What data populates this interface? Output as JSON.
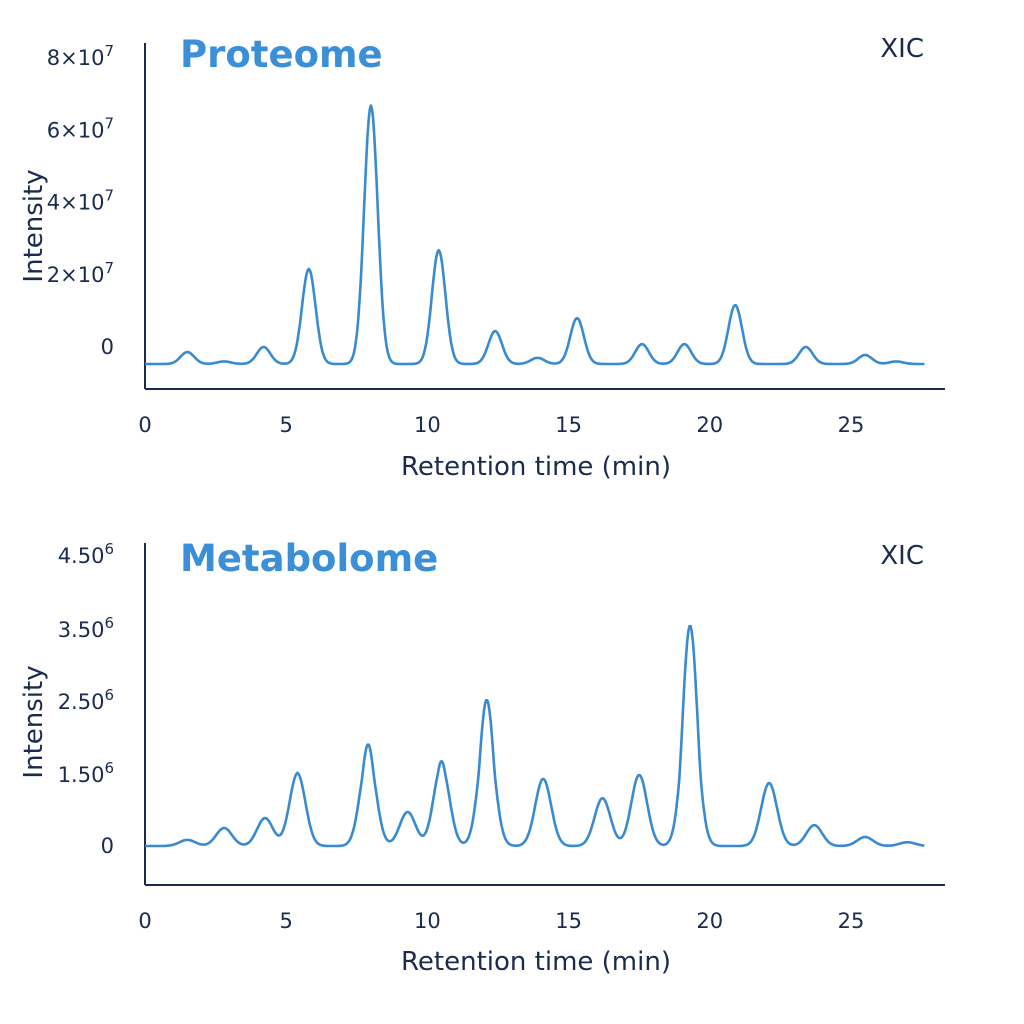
{
  "chart_data": [
    {
      "type": "line",
      "title": "Proteome",
      "tag": "XIC",
      "xlabel": "Retention time (min)",
      "ylabel": "Intensity",
      "xlim": [
        0,
        28.3
      ],
      "ylim": [
        -11600000,
        84000000
      ],
      "xticks": [
        "0",
        "5",
        "10",
        "15",
        "20",
        "25"
      ],
      "xtick_values": [
        0,
        5,
        10,
        15,
        20,
        25
      ],
      "yticks": [
        {
          "value": 0,
          "base": "0",
          "exp": ""
        },
        {
          "value": 20000000,
          "base": "2×10",
          "exp": "7"
        },
        {
          "value": 40000000,
          "base": "4×10",
          "exp": "7"
        },
        {
          "value": 60000000,
          "base": "6×10",
          "exp": "7"
        },
        {
          "value": 80000000,
          "base": "8×10",
          "exp": "7"
        }
      ],
      "grid": false,
      "color": "#3a8ad0",
      "baseline": -4700000,
      "x_end": 27.6,
      "peaks": [
        {
          "rt": 1.5,
          "apex": -1400000
        },
        {
          "rt": 2.8,
          "apex": -4000000
        },
        {
          "rt": 4.2,
          "apex": 0
        },
        {
          "rt": 5.8,
          "apex": 21600000
        },
        {
          "rt": 8.0,
          "apex": 66900000
        },
        {
          "rt": 10.4,
          "apex": 26800000
        },
        {
          "rt": 12.4,
          "apex": 4400000
        },
        {
          "rt": 13.9,
          "apex": -3000000
        },
        {
          "rt": 15.3,
          "apex": 8000000
        },
        {
          "rt": 17.6,
          "apex": 800000
        },
        {
          "rt": 19.1,
          "apex": 800000
        },
        {
          "rt": 20.9,
          "apex": 11600000
        },
        {
          "rt": 23.4,
          "apex": 0
        },
        {
          "rt": 25.5,
          "apex": -2200000
        },
        {
          "rt": 26.6,
          "apex": -4000000
        }
      ]
    },
    {
      "type": "line",
      "title": "Metabolome",
      "tag": "XIC",
      "xlabel": "Retention time (min)",
      "ylabel": "Intensity",
      "xlim": [
        0,
        28.3
      ],
      "xticks": [
        "0",
        "5",
        "10",
        "15",
        "20",
        "25"
      ],
      "xtick_values": [
        0,
        5,
        10,
        15,
        20,
        25
      ],
      "yticks": [
        {
          "value": 0,
          "base": "0",
          "exp": ""
        },
        {
          "value": 1500000,
          "base": "1.50",
          "exp": "6"
        },
        {
          "value": 2500000,
          "base": "2.50",
          "exp": "6"
        },
        {
          "value": 3500000,
          "base": "3.50",
          "exp": "6"
        },
        {
          "value": 4500000,
          "base": "4.50",
          "exp": "6"
        }
      ],
      "grid": false,
      "color": "#3a8ad0",
      "baseline": 0,
      "x_end": 27.6,
      "peaks": [
        {
          "rt": 1.5,
          "apex": 130000
        },
        {
          "rt": 2.8,
          "apex": 380000
        },
        {
          "rt": 4.25,
          "apex": 590000
        },
        {
          "rt": 5.4,
          "apex": 1530000
        },
        {
          "rt": 7.9,
          "apex": 1920000
        },
        {
          "rt": 9.3,
          "apex": 720000
        },
        {
          "rt": 10.5,
          "apex": 1690000
        },
        {
          "rt": 12.1,
          "apex": 2530000
        },
        {
          "rt": 14.1,
          "apex": 1420000
        },
        {
          "rt": 16.2,
          "apex": 1010000
        },
        {
          "rt": 17.5,
          "apex": 1500000
        },
        {
          "rt": 19.3,
          "apex": 3560000
        },
        {
          "rt": 22.1,
          "apex": 1330000
        },
        {
          "rt": 23.7,
          "apex": 440000
        },
        {
          "rt": 25.5,
          "apex": 190000
        },
        {
          "rt": 27.0,
          "apex": 80000
        }
      ]
    }
  ]
}
